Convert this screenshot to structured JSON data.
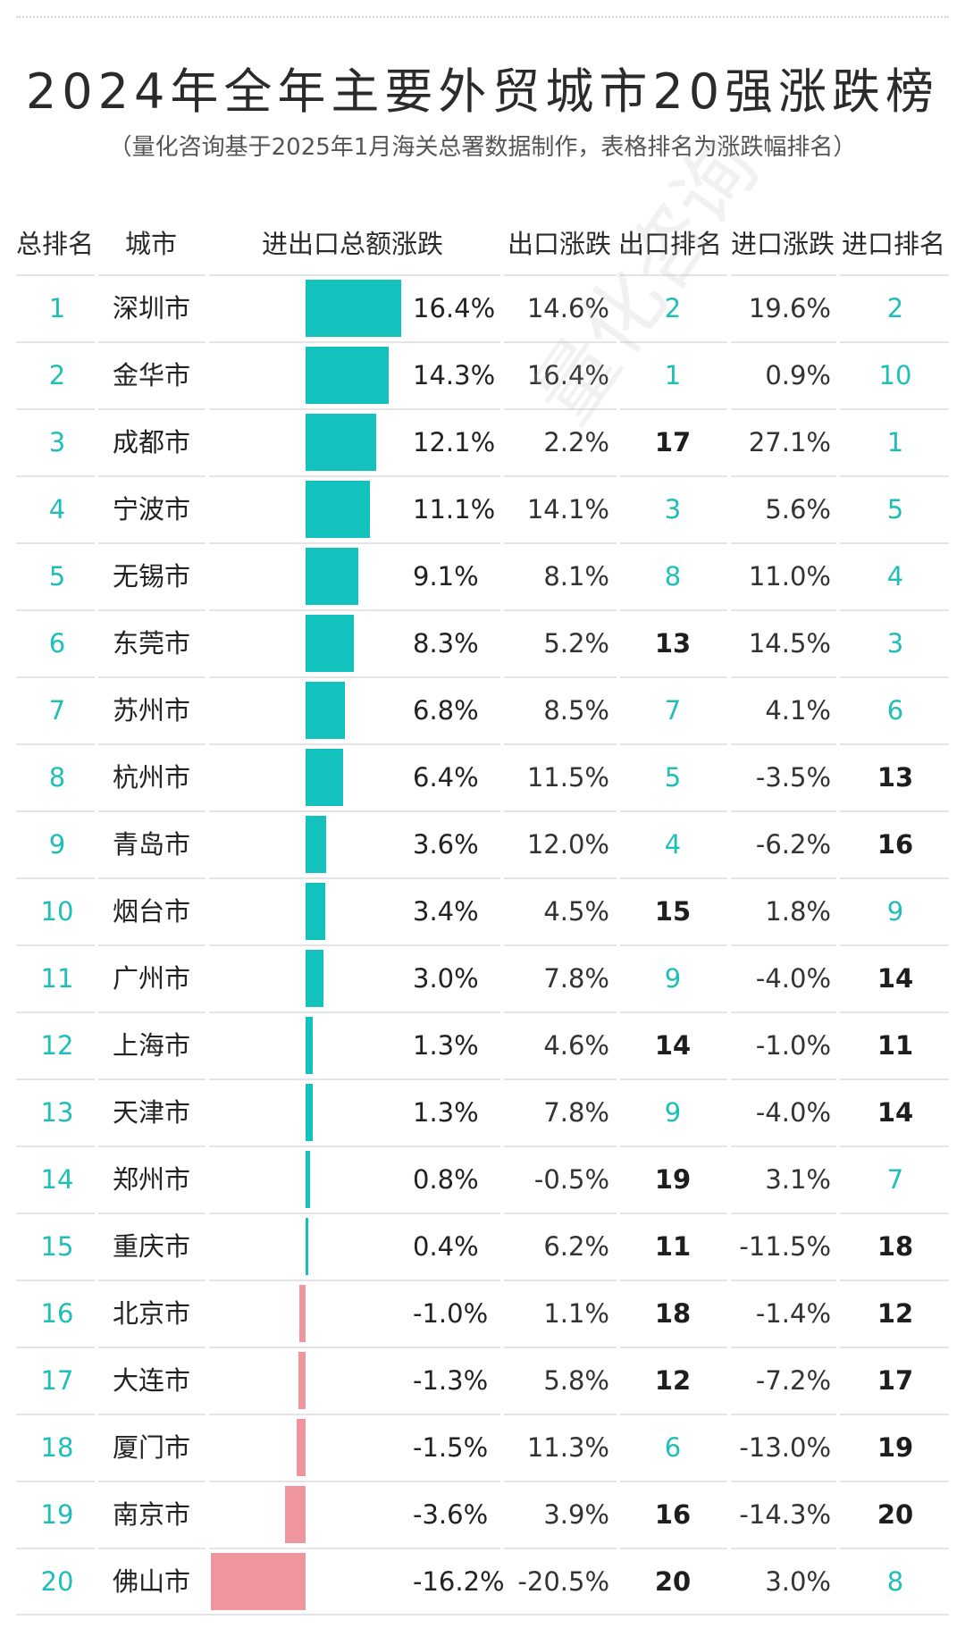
{
  "title": "2024年全年主要外贸城市20强涨跌榜",
  "subtitle": "（量化咨询基于2025年1月海关总署数据制作，表格排名为涨跌幅排名）",
  "headers": {
    "rank": "总排名",
    "city": "城市",
    "total": "进出口总额涨跌",
    "export": "出口涨跌",
    "export_rank": "出口排名",
    "import": "进口涨跌",
    "import_rank": "进口排名"
  },
  "colors": {
    "positive_bar": "#14c2bd",
    "negative_bar": "#ef959e",
    "rank_teal": "#1fbfb8",
    "rank_dark": "#1e1e1e"
  },
  "chart_data": {
    "type": "table",
    "columns": [
      "总排名",
      "城市",
      "进出口总额涨跌",
      "出口涨跌",
      "出口排名",
      "进口涨跌",
      "进口排名"
    ],
    "rows": [
      {
        "rank": "1",
        "city": "深圳市",
        "total": 16.4,
        "total_label": "16.4%",
        "export": "14.6%",
        "export_rank": "2",
        "import": "19.6%",
        "import_rank": "2"
      },
      {
        "rank": "2",
        "city": "金华市",
        "total": 14.3,
        "total_label": "14.3%",
        "export": "16.4%",
        "export_rank": "1",
        "import": "0.9%",
        "import_rank": "10"
      },
      {
        "rank": "3",
        "city": "成都市",
        "total": 12.1,
        "total_label": "12.1%",
        "export": "2.2%",
        "export_rank": "17",
        "import": "27.1%",
        "import_rank": "1"
      },
      {
        "rank": "4",
        "city": "宁波市",
        "total": 11.1,
        "total_label": "11.1%",
        "export": "14.1%",
        "export_rank": "3",
        "import": "5.6%",
        "import_rank": "5"
      },
      {
        "rank": "5",
        "city": "无锡市",
        "total": 9.1,
        "total_label": "9.1%",
        "export": "8.1%",
        "export_rank": "8",
        "import": "11.0%",
        "import_rank": "4"
      },
      {
        "rank": "6",
        "city": "东莞市",
        "total": 8.3,
        "total_label": "8.3%",
        "export": "5.2%",
        "export_rank": "13",
        "import": "14.5%",
        "import_rank": "3"
      },
      {
        "rank": "7",
        "city": "苏州市",
        "total": 6.8,
        "total_label": "6.8%",
        "export": "8.5%",
        "export_rank": "7",
        "import": "4.1%",
        "import_rank": "6"
      },
      {
        "rank": "8",
        "city": "杭州市",
        "total": 6.4,
        "total_label": "6.4%",
        "export": "11.5%",
        "export_rank": "5",
        "import": "-3.5%",
        "import_rank": "13"
      },
      {
        "rank": "9",
        "city": "青岛市",
        "total": 3.6,
        "total_label": "3.6%",
        "export": "12.0%",
        "export_rank": "4",
        "import": "-6.2%",
        "import_rank": "16"
      },
      {
        "rank": "10",
        "city": "烟台市",
        "total": 3.4,
        "total_label": "3.4%",
        "export": "4.5%",
        "export_rank": "15",
        "import": "1.8%",
        "import_rank": "9"
      },
      {
        "rank": "11",
        "city": "广州市",
        "total": 3.0,
        "total_label": "3.0%",
        "export": "7.8%",
        "export_rank": "9",
        "import": "-4.0%",
        "import_rank": "14"
      },
      {
        "rank": "12",
        "city": "上海市",
        "total": 1.3,
        "total_label": "1.3%",
        "export": "4.6%",
        "export_rank": "14",
        "import": "-1.0%",
        "import_rank": "11"
      },
      {
        "rank": "13",
        "city": "天津市",
        "total": 1.3,
        "total_label": "1.3%",
        "export": "7.8%",
        "export_rank": "9",
        "import": "-4.0%",
        "import_rank": "14"
      },
      {
        "rank": "14",
        "city": "郑州市",
        "total": 0.8,
        "total_label": "0.8%",
        "export": "-0.5%",
        "export_rank": "19",
        "import": "3.1%",
        "import_rank": "7"
      },
      {
        "rank": "15",
        "city": "重庆市",
        "total": 0.4,
        "total_label": "0.4%",
        "export": "6.2%",
        "export_rank": "11",
        "import": "-11.5%",
        "import_rank": "18"
      },
      {
        "rank": "16",
        "city": "北京市",
        "total": -1.0,
        "total_label": "-1.0%",
        "export": "1.1%",
        "export_rank": "18",
        "import": "-1.4%",
        "import_rank": "12"
      },
      {
        "rank": "17",
        "city": "大连市",
        "total": -1.3,
        "total_label": "-1.3%",
        "export": "5.8%",
        "export_rank": "12",
        "import": "-7.2%",
        "import_rank": "17"
      },
      {
        "rank": "18",
        "city": "厦门市",
        "total": -1.5,
        "total_label": "-1.5%",
        "export": "11.3%",
        "export_rank": "6",
        "import": "-13.0%",
        "import_rank": "19"
      },
      {
        "rank": "19",
        "city": "南京市",
        "total": -3.6,
        "total_label": "-3.6%",
        "export": "3.9%",
        "export_rank": "16",
        "import": "-14.3%",
        "import_rank": "20"
      },
      {
        "rank": "20",
        "city": "佛山市",
        "total": -16.2,
        "total_label": "-16.2%",
        "export": "-20.5%",
        "export_rank": "20",
        "import": "3.0%",
        "import_rank": "8"
      }
    ]
  }
}
